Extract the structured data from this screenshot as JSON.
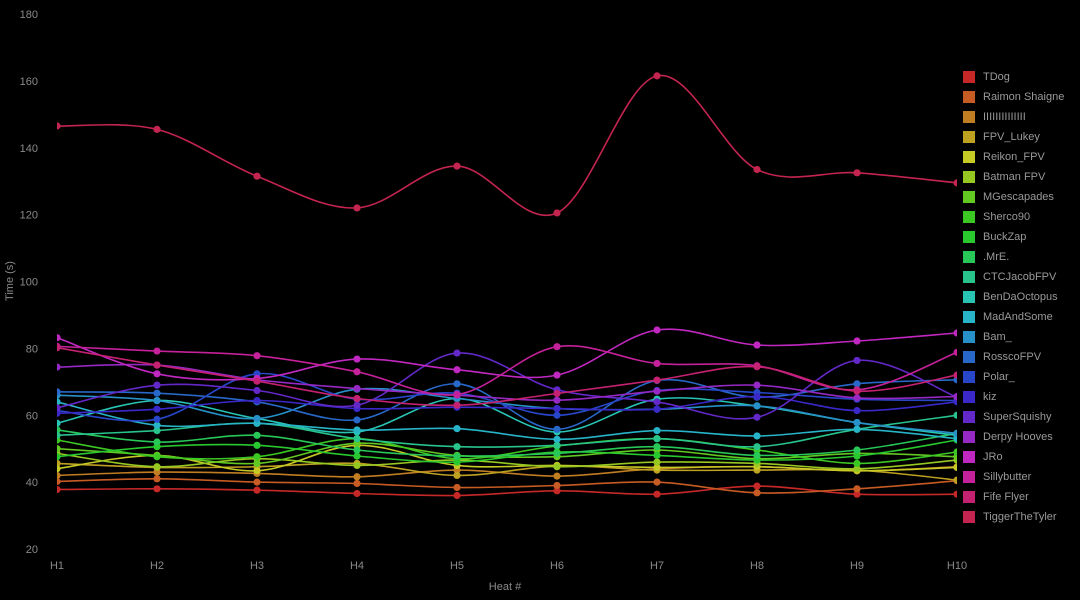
{
  "chart_data": {
    "type": "line",
    "title": "",
    "xlabel": "Heat #",
    "ylabel": "Time (s)",
    "x_categories": [
      "H1",
      "H2",
      "H3",
      "H4",
      "H5",
      "H6",
      "H7",
      "H8",
      "H9",
      "H10"
    ],
    "ylim": [
      20,
      180
    ],
    "yticks": [
      20,
      40,
      60,
      80,
      100,
      120,
      140,
      160,
      180
    ],
    "grid": false,
    "legend_position": "right",
    "marker": "circle",
    "smoothing": true,
    "series": [
      {
        "name": "TDog",
        "color": "#c62828",
        "values": [
          37.8,
          38.0,
          37.6,
          36.6,
          36.0,
          37.4,
          36.4,
          38.8,
          36.4,
          36.4
        ]
      },
      {
        "name": "Raimon Shaigne",
        "color": "#c75b24",
        "values": [
          40.2,
          41.0,
          40.0,
          39.6,
          38.4,
          39.0,
          40.0,
          36.8,
          38.0,
          40.4
        ]
      },
      {
        "name": "IIIIIIIIIIIIII",
        "color": "#c07d22",
        "values": [
          42.0,
          43.0,
          42.6,
          41.6,
          43.6,
          41.8,
          44.0,
          44.6,
          43.4,
          44.6
        ]
      },
      {
        "name": "FPV_Lukey",
        "color": "#bfa122",
        "values": [
          45.6,
          44.4,
          44.6,
          45.6,
          42.0,
          44.8,
          43.6,
          43.6,
          43.6,
          40.6
        ]
      },
      {
        "name": "Reikon_FPV",
        "color": "#c6ca25",
        "values": [
          44.0,
          48.0,
          43.4,
          51.0,
          45.0,
          45.0,
          44.4,
          44.6,
          43.4,
          44.4
        ]
      },
      {
        "name": "Batman FPV",
        "color": "#97c822",
        "values": [
          48.6,
          44.6,
          47.0,
          45.0,
          46.6,
          44.6,
          46.0,
          45.6,
          44.0,
          46.6
        ]
      },
      {
        "name": "MGescapades",
        "color": "#62c822",
        "values": [
          50.0,
          48.0,
          45.6,
          51.6,
          48.0,
          47.6,
          49.6,
          47.0,
          48.6,
          47.6
        ]
      },
      {
        "name": "Sherco90",
        "color": "#3cc822",
        "values": [
          52.6,
          47.6,
          47.6,
          53.0,
          47.0,
          50.8,
          53.0,
          49.6,
          45.6,
          49.0
        ]
      },
      {
        "name": "BuckZap",
        "color": "#28c82e",
        "values": [
          47.6,
          50.6,
          51.0,
          47.8,
          46.0,
          49.0,
          48.0,
          46.6,
          47.8,
          52.6
        ]
      },
      {
        "name": ".MrE.",
        "color": "#28c858",
        "values": [
          55.6,
          52.0,
          54.0,
          49.6,
          47.8,
          48.6,
          50.6,
          48.0,
          49.6,
          54.6
        ]
      },
      {
        "name": "CTCJacobFPV",
        "color": "#28c48c",
        "values": [
          54.0,
          55.4,
          57.6,
          53.0,
          50.6,
          51.0,
          53.0,
          50.6,
          55.8,
          60.0
        ]
      },
      {
        "name": "BenDaOctopus",
        "color": "#28c4b4",
        "values": [
          57.6,
          64.4,
          59.0,
          55.0,
          65.0,
          55.0,
          64.8,
          62.8,
          57.8,
          54.0
        ]
      },
      {
        "name": "MadAndSome",
        "color": "#28b4c8",
        "values": [
          64.0,
          57.0,
          57.6,
          55.6,
          56.0,
          52.8,
          55.4,
          53.8,
          55.8,
          53.0
        ]
      },
      {
        "name": "Bam_",
        "color": "#2890c8",
        "values": [
          66.0,
          64.4,
          59.0,
          67.8,
          65.0,
          62.0,
          61.8,
          62.8,
          57.8,
          54.6
        ]
      },
      {
        "name": "RosscoFPV",
        "color": "#2868c8",
        "values": [
          67.0,
          66.6,
          64.0,
          58.6,
          69.4,
          55.8,
          70.4,
          65.4,
          69.4,
          70.6
        ]
      },
      {
        "name": "Polar_",
        "color": "#2846c8",
        "values": [
          61.4,
          58.8,
          72.4,
          64.8,
          66.6,
          60.0,
          67.4,
          66.8,
          64.8,
          64.4
        ]
      },
      {
        "name": "kiz",
        "color": "#3a28c8",
        "values": [
          60.6,
          61.8,
          64.4,
          62.0,
          62.4,
          62.0,
          61.8,
          65.6,
          61.4,
          64.0
        ]
      },
      {
        "name": "SuperSquishy",
        "color": "#6328c8",
        "values": [
          62.2,
          69.0,
          67.4,
          63.0,
          78.6,
          67.6,
          64.0,
          59.4,
          76.4,
          65.4
        ]
      },
      {
        "name": "Derpy Hooves",
        "color": "#9628c4",
        "values": [
          74.4,
          75.0,
          70.6,
          68.0,
          66.0,
          64.5,
          67.2,
          69.0,
          65.2,
          65.6
        ]
      },
      {
        "name": "JRo",
        "color": "#c128c1",
        "values": [
          83.2,
          72.4,
          71.0,
          76.8,
          73.6,
          72.0,
          85.5,
          81.0,
          82.2,
          84.6
        ]
      },
      {
        "name": "Sillybutter",
        "color": "#c4219a",
        "values": [
          80.6,
          79.2,
          77.8,
          73.0,
          66.2,
          80.5,
          75.5,
          74.8,
          67.6,
          78.8
        ]
      },
      {
        "name": "Fife Flyer",
        "color": "#c42270",
        "values": [
          80.2,
          75.0,
          70.2,
          65.0,
          63.0,
          66.5,
          70.5,
          74.5,
          67.2,
          72.0
        ]
      },
      {
        "name": "TiggerTheTyler",
        "color": "#c42450",
        "values": [
          146.5,
          145.5,
          131.5,
          122.0,
          134.5,
          120.5,
          161.5,
          133.5,
          132.5,
          129.5
        ]
      }
    ]
  },
  "colors": {
    "background": "#000000",
    "axis_text": "#8a8a8a",
    "legend_text": "#999999"
  }
}
